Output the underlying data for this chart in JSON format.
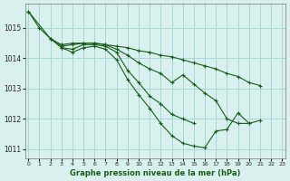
{
  "title": "Graphe pression niveau de la mer (hPa)",
  "bg_color": "#d8f0ee",
  "grid_color": "#aad8d4",
  "line_color": "#1a5c1a",
  "marker": "+",
  "x_ticks": [
    0,
    1,
    2,
    3,
    4,
    5,
    6,
    7,
    8,
    9,
    10,
    11,
    12,
    13,
    14,
    15,
    16,
    17,
    18,
    19,
    20,
    21,
    22,
    23
  ],
  "ylim": [
    1010.7,
    1015.8
  ],
  "yticks": [
    1011,
    1012,
    1013,
    1014,
    1015
  ],
  "series": [
    [
      1015.55,
      1015.0,
      1014.65,
      1014.45,
      1014.5,
      1014.5,
      1014.5,
      1014.45,
      1014.4,
      1014.35,
      1014.25,
      1014.2,
      1014.1,
      1014.05,
      1013.95,
      1013.85,
      1013.75,
      1013.65,
      1013.5,
      1013.4,
      1013.2,
      1013.1,
      null,
      null
    ],
    [
      1015.55,
      null,
      1014.65,
      1014.4,
      1014.45,
      1014.5,
      1014.5,
      1014.45,
      1014.3,
      1014.1,
      1013.85,
      1013.65,
      1013.5,
      1013.2,
      1013.45,
      1013.15,
      1012.85,
      1012.6,
      1012.0,
      1011.85,
      1011.85,
      null,
      null,
      null
    ],
    [
      null,
      null,
      1014.65,
      1014.35,
      1014.3,
      1014.45,
      1014.45,
      1014.4,
      1014.2,
      1013.6,
      1013.2,
      1012.75,
      1012.5,
      1012.15,
      1012.0,
      1011.85,
      null,
      null,
      null,
      null,
      null,
      null,
      null,
      null
    ],
    [
      null,
      null,
      null,
      1014.35,
      1014.2,
      1014.35,
      1014.4,
      1014.3,
      1013.95,
      1013.3,
      1012.8,
      1012.35,
      1011.85,
      1011.45,
      1011.2,
      1011.1,
      1011.05,
      1011.6,
      1011.65,
      1012.2,
      1011.85,
      1011.95,
      null,
      null
    ]
  ]
}
